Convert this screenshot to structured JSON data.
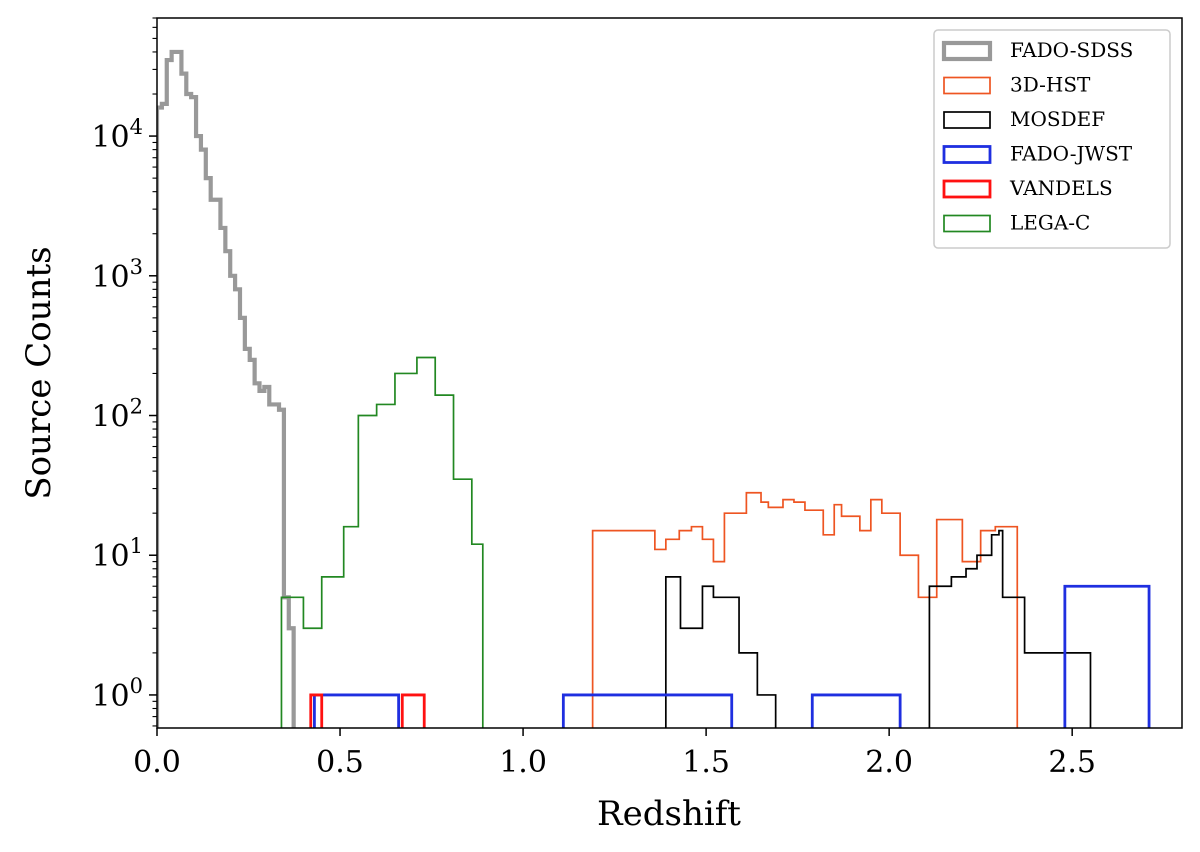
{
  "chart_data": {
    "type": "histogram",
    "xlabel": "Redshift",
    "ylabel": "Source Counts",
    "xlim": [
      0.0,
      2.8
    ],
    "ylim": [
      0.58,
      70000
    ],
    "yscale": "log",
    "legend_position": "top-right",
    "x_ticks": [
      {
        "value": 0.0,
        "label": "0.0"
      },
      {
        "value": 0.5,
        "label": "0.5"
      },
      {
        "value": 1.0,
        "label": "1.0"
      },
      {
        "value": 1.5,
        "label": "1.5"
      },
      {
        "value": 2.0,
        "label": "2.0"
      },
      {
        "value": 2.5,
        "label": "2.5"
      }
    ],
    "y_ticks": [
      {
        "value": 1,
        "base": "10",
        "exp": "0"
      },
      {
        "value": 10,
        "base": "10",
        "exp": "1"
      },
      {
        "value": 100,
        "base": "10",
        "exp": "2"
      },
      {
        "value": 1000,
        "base": "10",
        "exp": "3"
      },
      {
        "value": 10000,
        "base": "10",
        "exp": "4"
      }
    ],
    "series": [
      {
        "name": "FADO-SDSS",
        "color": "#999999",
        "weight": "thick",
        "edges": [
          0.0,
          0.0133,
          0.0267,
          0.04,
          0.0533,
          0.0667,
          0.08,
          0.0933,
          0.1067,
          0.12,
          0.1333,
          0.1467,
          0.16,
          0.1733,
          0.1867,
          0.2,
          0.2133,
          0.2267,
          0.24,
          0.2533,
          0.2667,
          0.28,
          0.2933,
          0.3067,
          0.32,
          0.3333,
          0.3467,
          0.36,
          0.3733,
          0.3867
        ],
        "counts": [
          16000,
          17000,
          35000,
          40000,
          40000,
          28000,
          20000,
          19000,
          10000,
          8000,
          5000,
          3500,
          3500,
          2200,
          1500,
          1000,
          800,
          500,
          300,
          250,
          170,
          150,
          160,
          120,
          120,
          110,
          5,
          3,
          0
        ]
      },
      {
        "name": "3D-HST",
        "color": "#ee5522",
        "weight": "thin",
        "edges": [
          1.19,
          1.2733,
          1.3,
          1.34,
          1.36,
          1.39,
          1.4267,
          1.44,
          1.46,
          1.49,
          1.52,
          1.55,
          1.58,
          1.61,
          1.65,
          1.67,
          1.71,
          1.74,
          1.77,
          1.82,
          1.85,
          1.87,
          1.92,
          1.95,
          1.98,
          2.03,
          2.08,
          2.1,
          2.13,
          2.2,
          2.25,
          2.29,
          2.33,
          2.35
        ],
        "counts": [
          15,
          15,
          15,
          15,
          11,
          13,
          15,
          15,
          16,
          13,
          9,
          20,
          20,
          28,
          24,
          22,
          25,
          24,
          21,
          14,
          23,
          19,
          15,
          25,
          20,
          10,
          5,
          5,
          18,
          9,
          15,
          16,
          16
        ]
      },
      {
        "name": "MOSDEF",
        "color": "#000000",
        "weight": "thin",
        "edges": [
          1.39,
          1.43,
          1.49,
          1.52,
          1.59,
          1.64,
          1.69,
          1.8,
          2.11,
          2.17,
          2.21,
          2.24,
          2.28,
          2.3,
          2.31,
          2.37,
          2.44,
          2.5,
          2.55
        ],
        "counts": [
          7,
          3,
          6,
          5,
          2,
          1,
          0,
          0,
          6,
          7,
          8,
          10,
          14,
          15,
          5,
          2,
          2,
          2
        ]
      },
      {
        "name": "FADO-JWST",
        "color": "#1f2fe0",
        "weight": "medium",
        "edges": [
          0.43,
          0.66,
          1.11,
          1.57,
          1.79,
          2.03,
          2.48,
          2.71
        ],
        "counts": [
          1,
          0,
          1,
          0,
          1,
          0,
          6
        ]
      },
      {
        "name": "VANDELS",
        "color": "#ff1111",
        "weight": "medium",
        "edges": [
          0.42,
          0.45,
          0.67,
          0.73
        ],
        "counts": [
          1,
          0,
          1
        ]
      },
      {
        "name": "LEGA-C",
        "color": "#228822",
        "weight": "thin",
        "edges": [
          0.34,
          0.4,
          0.45,
          0.51,
          0.55,
          0.6,
          0.65,
          0.71,
          0.76,
          0.81,
          0.86,
          0.89
        ],
        "counts": [
          5,
          3,
          7,
          16,
          100,
          120,
          200,
          260,
          140,
          35,
          12
        ]
      }
    ]
  }
}
